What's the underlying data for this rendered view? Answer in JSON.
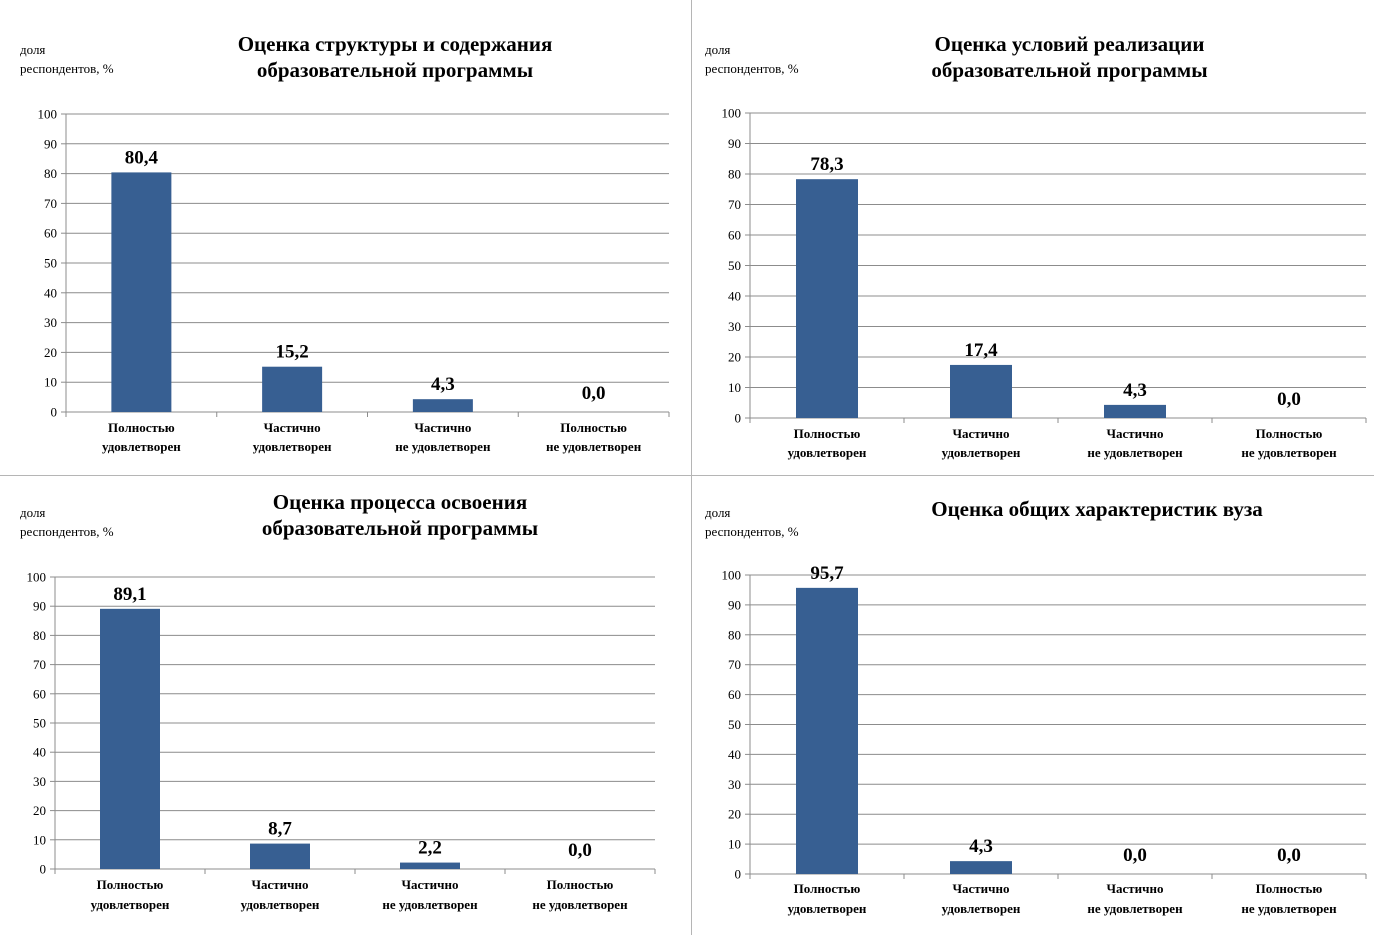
{
  "y_axis_label": {
    "line1": "доля",
    "line2": "респондентов, %"
  },
  "categories": [
    [
      "Полностью",
      "удовлетворен"
    ],
    [
      "Частично",
      "удовлетворен"
    ],
    [
      "Частично",
      "не удовлетворен"
    ],
    [
      "Полностью",
      "не удовлетворен"
    ]
  ],
  "y_ticks": [
    "0",
    "10",
    "20",
    "30",
    "40",
    "50",
    "60",
    "70",
    "80",
    "90",
    "100"
  ],
  "colors": {
    "bar": "#375f92",
    "grid": "#8c8c8c",
    "axis": "#8c8c8c"
  },
  "chart_data": [
    {
      "type": "bar",
      "title": [
        "Оценка структуры и содержания",
        "образовательной программы"
      ],
      "ylabel": "доля респондентов, %",
      "categories": [
        "Полностью удовлетворен",
        "Частично удовлетворен",
        "Частично не удовлетворен",
        "Полностью не удовлетворен"
      ],
      "values": [
        80.4,
        15.2,
        4.3,
        0.0
      ],
      "value_labels": [
        "80,4",
        "15,2",
        "4,3",
        "0,0"
      ],
      "ylim": [
        0,
        100
      ],
      "grid": true
    },
    {
      "type": "bar",
      "title": [
        "Оценка условий реализации",
        "образовательной программы"
      ],
      "ylabel": "доля респондентов, %",
      "categories": [
        "Полностью удовлетворен",
        "Частично удовлетворен",
        "Частично не удовлетворен",
        "Полностью не удовлетворен"
      ],
      "values": [
        78.3,
        17.4,
        4.3,
        0.0
      ],
      "value_labels": [
        "78,3",
        "17,4",
        "4,3",
        "0,0"
      ],
      "ylim": [
        0,
        100
      ],
      "grid": true
    },
    {
      "type": "bar",
      "title": [
        "Оценка процесса освоения",
        "образовательной программы"
      ],
      "ylabel": "доля респондентов, %",
      "categories": [
        "Полностью удовлетворен",
        "Частично удовлетворен",
        "Частично не удовлетворен",
        "Полностью не удовлетворен"
      ],
      "values": [
        89.1,
        8.7,
        2.2,
        0.0
      ],
      "value_labels": [
        "89,1",
        "8,7",
        "2,2",
        "0,0"
      ],
      "ylim": [
        0,
        100
      ],
      "grid": true
    },
    {
      "type": "bar",
      "title": [
        "Оценка общих характеристик вуза"
      ],
      "ylabel": "доля респондентов, %",
      "categories": [
        "Полностью удовлетворен",
        "Частично удовлетворен",
        "Частично не удовлетворен",
        "Полностью не удовлетворен"
      ],
      "values": [
        95.7,
        4.3,
        0.0,
        0.0
      ],
      "value_labels": [
        "95,7",
        "4,3",
        "0,0",
        "0,0"
      ],
      "ylim": [
        0,
        100
      ],
      "grid": true
    }
  ]
}
